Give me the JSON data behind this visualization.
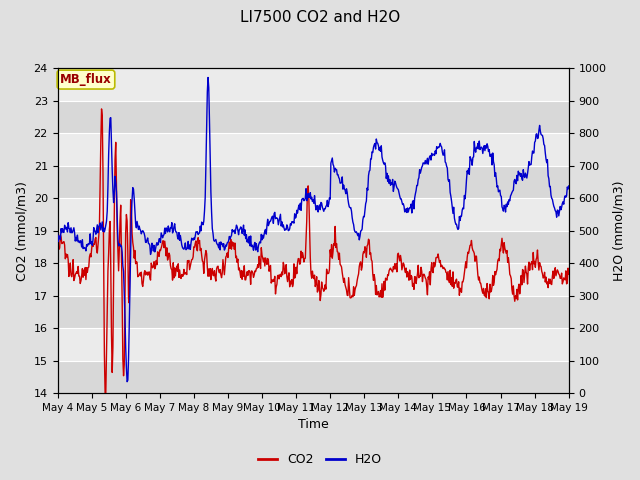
{
  "title": "LI7500 CO2 and H2O",
  "xlabel": "Time",
  "ylabel_left": "CO2 (mmol/m3)",
  "ylabel_right": "H2O (mmol/m3)",
  "ylim_left": [
    14.0,
    24.0
  ],
  "ylim_right": [
    0,
    1000
  ],
  "yticks_left": [
    14.0,
    15.0,
    16.0,
    17.0,
    18.0,
    19.0,
    20.0,
    21.0,
    22.0,
    23.0,
    24.0
  ],
  "yticks_right": [
    0,
    100,
    200,
    300,
    400,
    500,
    600,
    700,
    800,
    900,
    1000
  ],
  "co2_color": "#cc0000",
  "h2o_color": "#0000cc",
  "bg_color": "#e0e0e0",
  "plot_bg_light": "#ebebeb",
  "plot_bg_dark": "#d8d8d8",
  "grid_color": "#ffffff",
  "annotation_text": "MB_flux",
  "annotation_bg": "#ffffcc",
  "annotation_border": "#bbbb00",
  "annotation_text_color": "#990000",
  "line_width": 1.0,
  "title_fontsize": 11,
  "axis_fontsize": 9,
  "tick_fontsize": 8
}
